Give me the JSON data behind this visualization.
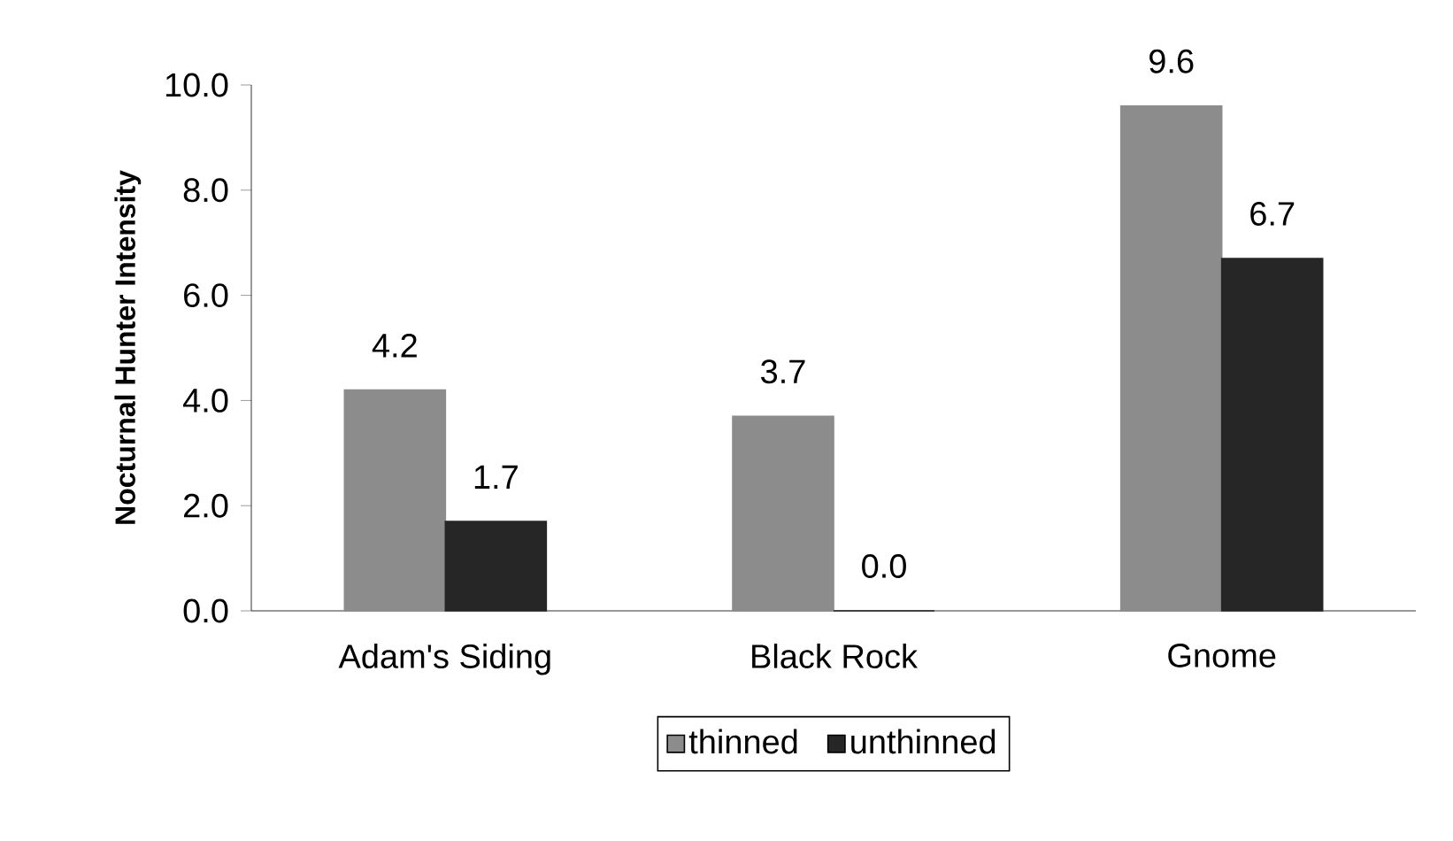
{
  "chart_data": {
    "type": "bar",
    "ylabel": "Nocturnal Hunter Intensity",
    "categories": [
      "Adam's Siding",
      "Black Rock",
      "Gnome"
    ],
    "series": [
      {
        "name": "thinned",
        "color": "#8c8c8c",
        "values": [
          4.2,
          3.7,
          9.6
        ],
        "value_labels": [
          "4.2",
          "3.7",
          "9.6"
        ]
      },
      {
        "name": "unthinned",
        "color": "#262626",
        "values": [
          1.7,
          0.0,
          6.7
        ],
        "value_labels": [
          "1.7",
          "0.0",
          "6.7"
        ]
      }
    ],
    "ylim": [
      0,
      10
    ],
    "yticks": [
      {
        "value": 0,
        "label": "0.0"
      },
      {
        "value": 2,
        "label": "2.0"
      },
      {
        "value": 4,
        "label": "4.0"
      },
      {
        "value": 6,
        "label": "6.0"
      },
      {
        "value": 8,
        "label": "8.0"
      },
      {
        "value": 10,
        "label": "10.0"
      }
    ],
    "legend": "bottom"
  }
}
